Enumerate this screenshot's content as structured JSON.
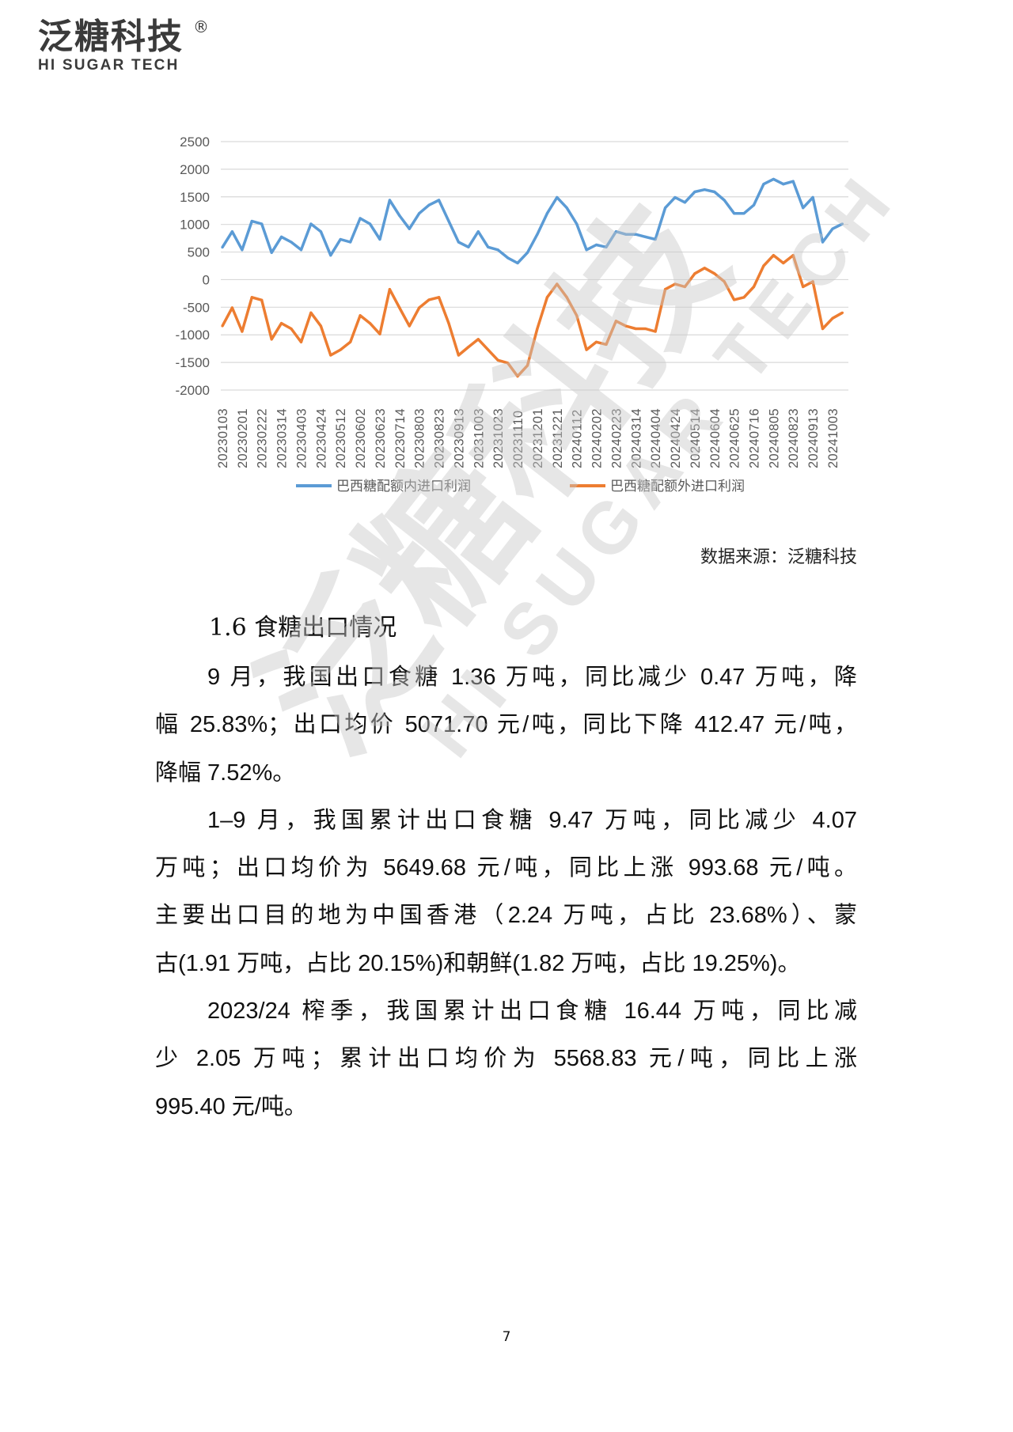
{
  "header": {
    "logo_cn": "泛糖科技",
    "logo_en": "HI SUGAR TECH",
    "logo_reg": "®"
  },
  "watermark": {
    "cn": "泛糖科技",
    "en": "HI SUGAR TECH"
  },
  "chart_data": {
    "type": "line",
    "title": "",
    "xlabel": "",
    "ylabel": "",
    "ylim": [
      -2000,
      2500
    ],
    "y_ticks": [
      "2500",
      "2000",
      "1500",
      "1000",
      "500",
      "0",
      "-500",
      "-1000",
      "-1500",
      "-2000"
    ],
    "x_tick_labels": [
      "20230103",
      "20230201",
      "20230222",
      "20230314",
      "20230403",
      "20230424",
      "20230512",
      "20230602",
      "20230623",
      "20230714",
      "20230803",
      "20230823",
      "20230913",
      "20231003",
      "20231023",
      "20231110",
      "20231201",
      "20231221",
      "20240112",
      "20240202",
      "20240223",
      "20240314",
      "20240404",
      "20240424",
      "20240514",
      "20240604",
      "20240625",
      "20240716",
      "20240805",
      "20240823",
      "20240913",
      "20241003"
    ],
    "grid": true,
    "legend_placement": "bottom",
    "series": [
      {
        "name": "巴西糖配额内进口利润",
        "color": "#5b9bd5",
        "values": [
          585,
          870,
          540,
          1060,
          1010,
          490,
          775,
          680,
          540,
          1010,
          870,
          440,
          730,
          680,
          1110,
          1010,
          730,
          1440,
          1160,
          920,
          1200,
          1350,
          1440,
          1060,
          680,
          590,
          870,
          590,
          540,
          395,
          300,
          490,
          820,
          1200,
          1490,
          1300,
          1010,
          540,
          630,
          590,
          870,
          820,
          820,
          775,
          730,
          1300,
          1490,
          1400,
          1590,
          1630,
          1590,
          1440,
          1200,
          1200,
          1350,
          1730,
          1820,
          1730,
          1780,
          1300,
          1490,
          680,
          920,
          1010
        ]
      },
      {
        "name": "巴西糖配额外进口利润",
        "color": "#ed7d31",
        "values": [
          -840,
          -510,
          -940,
          -320,
          -370,
          -1080,
          -790,
          -890,
          -1130,
          -600,
          -840,
          -1370,
          -1270,
          -1130,
          -650,
          -790,
          -985,
          -175,
          -510,
          -840,
          -510,
          -365,
          -320,
          -790,
          -1370,
          -1220,
          -1080,
          -1270,
          -1460,
          -1510,
          -1750,
          -1555,
          -890,
          -320,
          -80,
          -320,
          -650,
          -1270,
          -1130,
          -1175,
          -750,
          -840,
          -890,
          -890,
          -940,
          -175,
          -80,
          -130,
          110,
          210,
          110,
          -35,
          -365,
          -320,
          -130,
          250,
          440,
          300,
          440,
          -130,
          -35,
          -890,
          -700,
          -600
        ]
      }
    ]
  },
  "source": "数据来源：泛糖科技",
  "section": {
    "heading": "1.6 食糖出口情况"
  },
  "paragraphs": [
    {
      "lines": [
        "9 月，我国出口食糖 1.36 万吨，同比减少 0.47 万吨，降",
        "幅 25.83%；出口均价 5071.70 元/吨，同比下降 412.47 元/吨，",
        "降幅 7.52%。"
      ]
    },
    {
      "lines": [
        "1–9 月，我国累计出口食糖 9.47 万吨，同比减少 4.07",
        "万吨；出口均价为 5649.68 元/吨，同比上涨 993.68 元/吨。",
        "主要出口目的地为中国香港（2.24 万吨，占比 23.68%）、蒙",
        "古(1.91 万吨，占比 20.15%)和朝鲜(1.82 万吨，占比 19.25%)。"
      ]
    },
    {
      "lines": [
        "2023/24 榨季，我国累计出口食糖 16.44 万吨，同比减",
        "少 2.05 万吨；累计出口均价为 5568.83 元/吨，同比上涨",
        "995.40 元/吨。"
      ]
    }
  ],
  "page_number": "7"
}
